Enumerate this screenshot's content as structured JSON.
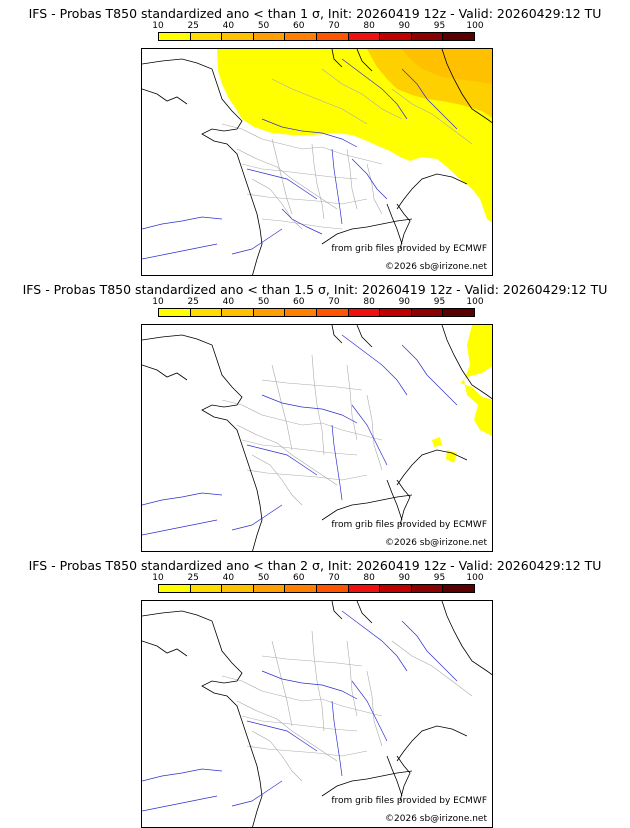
{
  "colorbar": {
    "ticks": [
      "10",
      "25",
      "40",
      "50",
      "60",
      "70",
      "80",
      "90",
      "95",
      "100"
    ],
    "colors": [
      "#ffff00",
      "#ffdd00",
      "#ffc000",
      "#ffa000",
      "#ff7f00",
      "#ff5500",
      "#ee1111",
      "#c00000",
      "#8b0000",
      "#5a0000"
    ]
  },
  "panels": [
    {
      "title": "IFS - Probas T850  standardized ano < than 1 σ, Init: 20260419 12z - Valid: 20260429:12 TU",
      "credit_source": "from grib files provided by ECMWF",
      "credit_copyright": "©2026 sb@irizone.net",
      "fill_levels": [
        "yellow",
        "light-orange"
      ]
    },
    {
      "title": "IFS - Probas T850  standardized ano < than 1.5 σ, Init: 20260419 12z - Valid: 20260429:12 TU",
      "credit_source": "from grib files provided by ECMWF",
      "credit_copyright": "©2026 sb@irizone.net",
      "fill_levels": [
        "yellow"
      ]
    },
    {
      "title": "IFS - Probas T850  standardized ano < than 2 σ, Init: 20260419 12z - Valid: 20260429:12 TU",
      "credit_source": "from grib files provided by ECMWF",
      "credit_copyright": "©2026 sb@irizone.net",
      "fill_levels": []
    }
  ]
}
